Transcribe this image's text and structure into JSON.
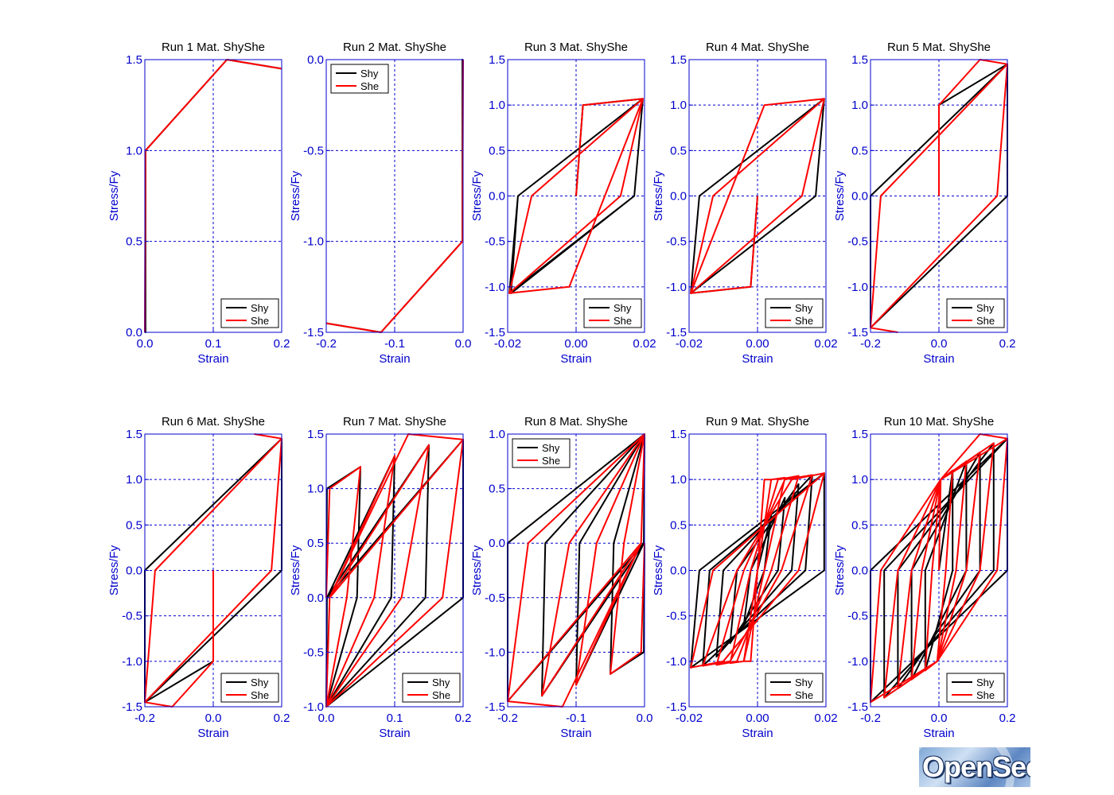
{
  "figure": {
    "line_colors": {
      "Shy": "#000000",
      "She": "#ff0000"
    },
    "axis_color": "#0000cc",
    "grid_color": "#0000cc",
    "logo_text": "OpenSees"
  },
  "chart_data": [
    {
      "type": "line",
      "title": "Run 1   Mat. ShyShe",
      "xlabel": "Strain",
      "ylabel": "Stress/Fy",
      "xlim": [
        0,
        0.2
      ],
      "ylim": [
        0,
        1.5
      ],
      "xticks": [
        0,
        0.1,
        0.2
      ],
      "xtick_labels": [
        "0.0",
        "0.1",
        "0.2"
      ],
      "yticks": [
        0,
        0.5,
        1,
        1.5
      ],
      "ytick_labels": [
        "0.0",
        "0.5",
        "1.0",
        "1.5"
      ],
      "grid": true,
      "legend": "bottom-right",
      "series": [
        {
          "name": "Shy",
          "x": [
            0,
            0.001,
            0.001,
            0.12,
            0.2
          ],
          "y": [
            0,
            0,
            1,
            1.5,
            1.45
          ]
        },
        {
          "name": "She",
          "x": [
            0,
            0.001,
            0.12,
            0.2
          ],
          "y": [
            0,
            1,
            1.5,
            1.45
          ]
        }
      ]
    },
    {
      "type": "line",
      "title": "Run 2   Mat. ShyShe",
      "xlabel": "Strain",
      "ylabel": "Stress/Fy",
      "xlim": [
        -0.2,
        0
      ],
      "ylim": [
        -1.5,
        0
      ],
      "xticks": [
        -0.2,
        -0.1,
        0
      ],
      "xtick_labels": [
        "-0.2",
        "-0.1",
        "0.0"
      ],
      "yticks": [
        -1.5,
        -1,
        -0.5,
        0
      ],
      "ytick_labels": [
        "-1.5",
        "-1.0",
        "-0.5",
        "0.0"
      ],
      "grid": true,
      "legend": "top-left",
      "series": [
        {
          "name": "Shy",
          "x": [
            0,
            -0.001,
            -0.001,
            -0.12,
            -0.2
          ],
          "y": [
            0,
            0,
            -1,
            -1.5,
            -1.45
          ]
        },
        {
          "name": "She",
          "x": [
            0,
            -0.001,
            -0.12,
            -0.2
          ],
          "y": [
            0,
            -1,
            -1.5,
            -1.45
          ]
        }
      ]
    },
    {
      "type": "line",
      "title": "Run 3   Mat. ShyShe",
      "xlabel": "Strain",
      "ylabel": "Stress/Fy",
      "xlim": [
        -0.02,
        0.02
      ],
      "ylim": [
        -1.5,
        1.5
      ],
      "xticks": [
        -0.02,
        0,
        0.02
      ],
      "xtick_labels": [
        "-0.02",
        "0.00",
        "0.02"
      ],
      "yticks": [
        -1.5,
        -1,
        -0.5,
        0,
        0.5,
        1,
        1.5
      ],
      "ytick_labels": [
        "-1.5",
        "-1.0",
        "-0.5",
        "0.0",
        "0.5",
        "1.0",
        "1.5"
      ],
      "grid": true,
      "legend": "bottom-right",
      "series": [
        {
          "name": "Shy",
          "x": [
            0,
            0.002,
            0.0195,
            0.017,
            -0.019,
            -0.017,
            0.0195,
            0.017,
            -0.0195,
            -0.017,
            0.0195,
            0.017,
            -0.0195
          ],
          "y": [
            0,
            1,
            1.07,
            0,
            -1.07,
            0,
            1.07,
            0,
            -1.07,
            0,
            1.07,
            0,
            -1.07
          ]
        },
        {
          "name": "She",
          "x": [
            0,
            0.002,
            0.0195,
            0.013,
            -0.0195,
            -0.013,
            0.0195,
            0.013,
            -0.0195,
            -0.002,
            0.0195
          ],
          "y": [
            0,
            1,
            1.07,
            0,
            -1.07,
            0,
            1.07,
            0,
            -1.07,
            -1,
            1.07
          ]
        }
      ]
    },
    {
      "type": "line",
      "title": "Run 4   Mat. ShyShe",
      "xlabel": "Strain",
      "ylabel": "Stress/Fy",
      "xlim": [
        -0.02,
        0.02
      ],
      "ylim": [
        -1.5,
        1.5
      ],
      "xticks": [
        -0.02,
        0,
        0.02
      ],
      "xtick_labels": [
        "-0.02",
        "0.00",
        "0.02"
      ],
      "yticks": [
        -1.5,
        -1,
        -0.5,
        0,
        0.5,
        1,
        1.5
      ],
      "ytick_labels": [
        "-1.5",
        "-1.0",
        "-0.5",
        "0.0",
        "0.5",
        "1.0",
        "1.5"
      ],
      "grid": true,
      "legend": "bottom-right",
      "series": [
        {
          "name": "Shy",
          "x": [
            0,
            -0.002,
            -0.0195,
            -0.017,
            0.0195,
            0.017,
            -0.0195,
            -0.017,
            0.0195,
            0.017,
            -0.0195,
            -0.017,
            0.0195
          ],
          "y": [
            0,
            -1,
            -1.07,
            0,
            1.07,
            0,
            -1.07,
            0,
            1.07,
            0,
            -1.07,
            0,
            1.07
          ]
        },
        {
          "name": "She",
          "x": [
            0,
            -0.002,
            -0.0195,
            -0.013,
            0.0195,
            0.013,
            -0.0195,
            -0.013,
            0.0195,
            0.002,
            -0.0195
          ],
          "y": [
            0,
            -1,
            -1.07,
            0,
            1.07,
            0,
            -1.07,
            0,
            1.07,
            1,
            -1.07
          ]
        }
      ]
    },
    {
      "type": "line",
      "title": "Run 5   Mat. ShyShe",
      "xlabel": "Strain",
      "ylabel": "Stress/Fy",
      "xlim": [
        -0.2,
        0.2
      ],
      "ylim": [
        -1.5,
        1.5
      ],
      "xticks": [
        -0.2,
        0,
        0.2
      ],
      "xtick_labels": [
        "-0.2",
        "0.0",
        "0.2"
      ],
      "yticks": [
        -1.5,
        -1,
        -0.5,
        0,
        0.5,
        1,
        1.5
      ],
      "ytick_labels": [
        "-1.5",
        "-1.0",
        "-0.5",
        "0.0",
        "0.5",
        "1.0",
        "1.5"
      ],
      "grid": true,
      "legend": "bottom-right",
      "series": [
        {
          "name": "Shy",
          "x": [
            0,
            0,
            0.2,
            0.2,
            -0.2,
            -0.2,
            0.2,
            0.2,
            -0.2
          ],
          "y": [
            0,
            1,
            1.45,
            0,
            -1.45,
            0,
            1.45,
            0,
            -1.45
          ]
        },
        {
          "name": "She",
          "x": [
            0,
            0,
            0.12,
            0.2,
            0.17,
            -0.2,
            -0.17,
            0.2,
            0.17,
            -0.2,
            -0.12
          ],
          "y": [
            0,
            1,
            1.5,
            1.45,
            0,
            -1.45,
            0,
            1.45,
            0,
            -1.45,
            -1.5
          ]
        }
      ]
    },
    {
      "type": "line",
      "title": "Run 6   Mat. ShyShe",
      "xlabel": "Strain",
      "ylabel": "Stress/Fy",
      "xlim": [
        -0.2,
        0.2
      ],
      "ylim": [
        -1.5,
        1.5
      ],
      "xticks": [
        -0.2,
        0,
        0.2
      ],
      "xtick_labels": [
        "-0.2",
        "0.0",
        "0.2"
      ],
      "yticks": [
        -1.5,
        -1,
        -0.5,
        0,
        0.5,
        1,
        1.5
      ],
      "ytick_labels": [
        "-1.5",
        "-1.0",
        "-0.5",
        "0.0",
        "0.5",
        "1.0",
        "1.5"
      ],
      "grid": true,
      "legend": "bottom-right",
      "series": [
        {
          "name": "Shy",
          "x": [
            0,
            0,
            -0.2,
            -0.2,
            0.2,
            0.2,
            -0.2,
            -0.2,
            0.2
          ],
          "y": [
            0,
            -1,
            -1.45,
            0,
            1.45,
            0,
            -1.45,
            0,
            1.45
          ]
        },
        {
          "name": "She",
          "x": [
            0,
            0,
            -0.12,
            -0.2,
            -0.17,
            0.2,
            0.17,
            -0.2,
            -0.17,
            0.2,
            0.12
          ],
          "y": [
            0,
            -1,
            -1.5,
            -1.45,
            0,
            1.45,
            0,
            -1.45,
            0,
            1.45,
            1.5
          ]
        }
      ]
    },
    {
      "type": "line",
      "title": "Run 7   Mat. ShyShe",
      "xlabel": "Strain",
      "ylabel": "Stress/Fy",
      "xlim": [
        0,
        0.2
      ],
      "ylim": [
        -1,
        1.5
      ],
      "xticks": [
        0,
        0.1,
        0.2
      ],
      "xtick_labels": [
        "0.0",
        "0.1",
        "0.2"
      ],
      "yticks": [
        -1,
        -0.5,
        0,
        0.5,
        1,
        1.5
      ],
      "ytick_labels": [
        "-1.0",
        "-0.5",
        "0.0",
        "0.5",
        "1.0",
        "1.5"
      ],
      "grid": true,
      "legend": "bottom-right",
      "series": [
        {
          "name": "Shy",
          "x": [
            0,
            0.001,
            0.05,
            0.045,
            0,
            0.001,
            0.1,
            0.095,
            0,
            0.001,
            0.15,
            0.145,
            0,
            0.001,
            0.2,
            0.2,
            0
          ],
          "y": [
            0,
            1,
            1.2,
            0,
            -1,
            0,
            1.3,
            0,
            -1,
            0,
            1.4,
            0,
            -1,
            0,
            1.45,
            0,
            -1
          ]
        },
        {
          "name": "She",
          "x": [
            0,
            0.005,
            0.05,
            0.03,
            0,
            0.005,
            0.1,
            0.07,
            0,
            0.005,
            0.15,
            0.11,
            0,
            0.005,
            0.2,
            0.17,
            0,
            0.005,
            0.12,
            0.2
          ],
          "y": [
            0,
            1,
            1.2,
            0,
            -1,
            0,
            1.3,
            0,
            -1,
            0,
            1.4,
            0,
            -1,
            0,
            1.45,
            0,
            -1,
            0,
            1.5,
            1.45
          ]
        }
      ]
    },
    {
      "type": "line",
      "title": "Run 8   Mat. ShyShe",
      "xlabel": "Strain",
      "ylabel": "Stress/Fy",
      "xlim": [
        -0.2,
        0
      ],
      "ylim": [
        -1.5,
        1
      ],
      "xticks": [
        -0.2,
        -0.1,
        0
      ],
      "xtick_labels": [
        "-0.2",
        "-0.1",
        "0.0"
      ],
      "yticks": [
        -1.5,
        -1,
        -0.5,
        0,
        0.5,
        1
      ],
      "ytick_labels": [
        "-1.5",
        "-1.0",
        "-0.5",
        "0.0",
        "0.5",
        "1.0"
      ],
      "grid": true,
      "legend": "top-left",
      "series": [
        {
          "name": "Shy",
          "x": [
            0,
            -0.001,
            -0.05,
            -0.045,
            0,
            -0.001,
            -0.1,
            -0.095,
            0,
            -0.001,
            -0.15,
            -0.145,
            0,
            -0.001,
            -0.2,
            -0.2,
            0
          ],
          "y": [
            0,
            -1,
            -1.2,
            0,
            1,
            0,
            -1.3,
            0,
            1,
            0,
            -1.4,
            0,
            1,
            0,
            -1.45,
            0,
            1
          ]
        },
        {
          "name": "She",
          "x": [
            0,
            -0.005,
            -0.05,
            -0.03,
            0,
            -0.005,
            -0.1,
            -0.07,
            0,
            -0.005,
            -0.15,
            -0.11,
            0,
            -0.005,
            -0.2,
            -0.17,
            0,
            -0.005,
            -0.12,
            -0.2
          ],
          "y": [
            0,
            -1,
            -1.2,
            0,
            1,
            0,
            -1.3,
            0,
            1,
            0,
            -1.4,
            0,
            1,
            0,
            -1.45,
            0,
            1,
            0,
            -1.5,
            -1.45
          ]
        }
      ]
    },
    {
      "type": "line",
      "title": "Run 9   Mat. ShyShe",
      "xlabel": "Strain",
      "ylabel": "Stress/Fy",
      "xlim": [
        -0.02,
        0.02
      ],
      "ylim": [
        -1.5,
        1.5
      ],
      "xticks": [
        -0.02,
        0,
        0.02
      ],
      "xtick_labels": [
        "-0.02",
        "0.00",
        "0.02"
      ],
      "yticks": [
        -1.5,
        -1,
        -0.5,
        0,
        0.5,
        1,
        1.5
      ],
      "ytick_labels": [
        "-1.5",
        "-1.0",
        "-0.5",
        "0.0",
        "0.5",
        "1.0",
        "1.5"
      ],
      "grid": true,
      "legend": "bottom-right",
      "series": [
        {
          "name": "Shy",
          "x": [
            0,
            0.004,
            0.002,
            -0.004,
            -0.002,
            0.008,
            0.006,
            -0.008,
            -0.006,
            0.012,
            0.01,
            -0.012,
            -0.01,
            0.016,
            0.014,
            -0.016,
            -0.014,
            0.0195,
            0.0195,
            -0.0195,
            -0.017,
            0.0195
          ],
          "y": [
            0,
            0.6,
            0,
            -0.6,
            0,
            0.8,
            0,
            -0.8,
            0,
            0.95,
            0,
            -0.95,
            0,
            1.05,
            0,
            -1.05,
            0,
            1.07,
            0,
            -1.07,
            0,
            1.07
          ]
        },
        {
          "name": "She",
          "x": [
            0,
            0.002,
            0.004,
            0.0,
            -0.002,
            -0.004,
            0.0,
            0.004,
            0.008,
            0.002,
            -0.004,
            -0.008,
            -0.002,
            0.006,
            0.012,
            0.004,
            -0.006,
            -0.012,
            -0.004,
            0.008,
            0.016,
            0.007,
            -0.008,
            -0.016,
            -0.006,
            0.01,
            0.0195,
            0.012,
            -0.01,
            -0.0195,
            -0.013,
            0.0195
          ],
          "y": [
            0,
            1,
            1,
            0,
            -1,
            -1,
            0,
            1,
            1.02,
            0,
            -1,
            -1.02,
            0,
            1,
            1.04,
            0,
            -1,
            -1.04,
            0,
            1,
            1.05,
            0,
            -1,
            -1.05,
            0,
            1,
            1.07,
            0,
            -1,
            -1.07,
            0,
            1.07
          ]
        }
      ]
    },
    {
      "type": "line",
      "title": "Run 10   Mat. ShyShe",
      "xlabel": "Strain",
      "ylabel": "Stress/Fy",
      "xlim": [
        -0.2,
        0.2
      ],
      "ylim": [
        -1.5,
        1.5
      ],
      "xticks": [
        -0.2,
        0,
        0.2
      ],
      "xtick_labels": [
        "-0.2",
        "0.0",
        "0.2"
      ],
      "yticks": [
        -1.5,
        -1,
        -0.5,
        0,
        0.5,
        1,
        1.5
      ],
      "ytick_labels": [
        "-1.5",
        "-1.0",
        "-0.5",
        "0.0",
        "0.5",
        "1.0",
        "1.5"
      ],
      "grid": true,
      "legend": "bottom-right",
      "series": [
        {
          "name": "Shy",
          "x": [
            0,
            0.04,
            0.04,
            -0.04,
            -0.04,
            0.08,
            0.08,
            -0.08,
            -0.08,
            0.12,
            0.12,
            -0.12,
            -0.12,
            0.16,
            0.16,
            -0.16,
            -0.16,
            0.2,
            0.2,
            -0.2,
            -0.2,
            0.2
          ],
          "y": [
            0,
            1.1,
            0,
            -1.1,
            0,
            1.2,
            0,
            -1.2,
            0,
            1.3,
            0,
            -1.3,
            0,
            1.4,
            0,
            -1.4,
            0,
            1.45,
            0,
            -1.45,
            0,
            1.45
          ]
        },
        {
          "name": "She",
          "x": [
            0,
            0.005,
            0.04,
            0.02,
            -0.005,
            -0.04,
            -0.02,
            0.005,
            0.08,
            0.05,
            -0.005,
            -0.08,
            -0.05,
            0.005,
            0.12,
            0.08,
            -0.005,
            -0.12,
            -0.08,
            0.005,
            0.16,
            0.12,
            -0.005,
            -0.16,
            -0.12,
            0.005,
            0.2,
            0.17,
            -0.005,
            -0.2,
            -0.17,
            0.005,
            0.12,
            0.2
          ],
          "y": [
            0,
            1,
            1.1,
            0,
            -1,
            -1.1,
            0,
            1,
            1.2,
            0,
            -1,
            -1.2,
            0,
            1,
            1.3,
            0,
            -1,
            -1.3,
            0,
            1,
            1.4,
            0,
            -1,
            -1.4,
            0,
            1,
            1.45,
            0,
            -1,
            -1.45,
            0,
            1,
            1.5,
            1.45
          ]
        }
      ]
    }
  ]
}
